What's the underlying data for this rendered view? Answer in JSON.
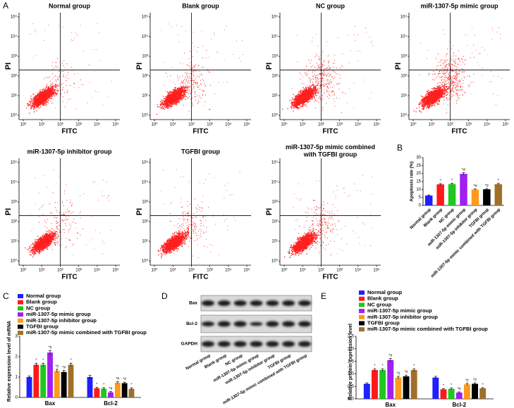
{
  "panel_labels": [
    "A",
    "B",
    "C",
    "D",
    "E"
  ],
  "blot": {
    "rows": [
      "Bax",
      "Bcl-2",
      "GAPDH"
    ],
    "lanes": [
      "Normal group",
      "Blank group",
      "NC group",
      "miR-1307-5p mimic group",
      "miR-1307-5p inhibitor group",
      "TGFBI group",
      "miR-1307-5p mimic combined with TGFBI group"
    ]
  },
  "chart_data": [
    {
      "type": "flow",
      "title": "Normal group",
      "xlabel": "FITC",
      "ylabel": "PI",
      "log_scale": true,
      "xlim": [
        1,
        100000
      ],
      "ylim": [
        1,
        100000
      ],
      "gate": [
        100,
        200
      ],
      "color": "#ff1f1f",
      "xticks": [
        {
          "value": 1,
          "label": "10⁰"
        },
        {
          "value": 10,
          "label": "10¹"
        },
        {
          "value": 100,
          "label": "10²"
        },
        {
          "value": 1000,
          "label": "10³"
        },
        {
          "value": 10000,
          "label": "10⁴"
        },
        {
          "value": 100000,
          "label": "10⁵"
        }
      ],
      "yticks": [
        {
          "value": 1,
          "label": "10⁰"
        },
        {
          "value": 10,
          "label": "10¹"
        },
        {
          "value": 100,
          "label": "10²"
        },
        {
          "value": 1000,
          "label": "10³"
        },
        {
          "value": 10000,
          "label": "10⁴"
        },
        {
          "value": 100000,
          "label": "10⁵"
        }
      ]
    },
    {
      "type": "flow",
      "title": "Blank group",
      "xlabel": "FITC",
      "ylabel": "PI",
      "log_scale": true,
      "xlim": [
        1,
        100000
      ],
      "ylim": [
        1,
        100000
      ],
      "gate": [
        100,
        200
      ],
      "color": "#ff1f1f",
      "xticks": [
        {
          "value": 1,
          "label": "10⁰"
        },
        {
          "value": 10,
          "label": "10¹"
        },
        {
          "value": 100,
          "label": "10²"
        },
        {
          "value": 1000,
          "label": "10³"
        },
        {
          "value": 10000,
          "label": "10⁴"
        },
        {
          "value": 100000,
          "label": "10⁵"
        }
      ],
      "yticks": [
        {
          "value": 1,
          "label": "10⁰"
        },
        {
          "value": 10,
          "label": "10¹"
        },
        {
          "value": 100,
          "label": "10²"
        },
        {
          "value": 1000,
          "label": "10³"
        },
        {
          "value": 10000,
          "label": "10⁴"
        },
        {
          "value": 100000,
          "label": "10⁵"
        }
      ]
    },
    {
      "type": "flow",
      "title": "NC group",
      "xlabel": "FITC",
      "ylabel": "PI",
      "log_scale": true,
      "xlim": [
        1,
        100000
      ],
      "ylim": [
        1,
        100000
      ],
      "gate": [
        100,
        200
      ],
      "color": "#ff1f1f",
      "xticks": [
        {
          "value": 1,
          "label": "10⁰"
        },
        {
          "value": 10,
          "label": "10¹"
        },
        {
          "value": 100,
          "label": "10²"
        },
        {
          "value": 1000,
          "label": "10³"
        },
        {
          "value": 10000,
          "label": "10⁴"
        },
        {
          "value": 100000,
          "label": "10⁵"
        }
      ],
      "yticks": [
        {
          "value": 1,
          "label": "10⁰"
        },
        {
          "value": 10,
          "label": "10¹"
        },
        {
          "value": 100,
          "label": "10²"
        },
        {
          "value": 1000,
          "label": "10³"
        },
        {
          "value": 10000,
          "label": "10⁴"
        },
        {
          "value": 100000,
          "label": "10⁵"
        }
      ]
    },
    {
      "type": "flow",
      "title": "miR-1307-5p mimic group",
      "xlabel": "FITC",
      "ylabel": "PI",
      "log_scale": true,
      "xlim": [
        1,
        100000
      ],
      "ylim": [
        1,
        100000
      ],
      "gate": [
        100,
        200
      ],
      "color": "#ff1f1f",
      "xticks": [
        {
          "value": 1,
          "label": "10⁰"
        },
        {
          "value": 10,
          "label": "10¹"
        },
        {
          "value": 100,
          "label": "10²"
        },
        {
          "value": 1000,
          "label": "10³"
        },
        {
          "value": 10000,
          "label": "10⁴"
        },
        {
          "value": 100000,
          "label": "10⁵"
        }
      ],
      "yticks": [
        {
          "value": 1,
          "label": "10⁰"
        },
        {
          "value": 10,
          "label": "10¹"
        },
        {
          "value": 100,
          "label": "10²"
        },
        {
          "value": 1000,
          "label": "10³"
        },
        {
          "value": 10000,
          "label": "10⁴"
        },
        {
          "value": 100000,
          "label": "10⁵"
        }
      ]
    },
    {
      "type": "flow",
      "title": "miR-1307-5p inhibitor group",
      "xlabel": "FITC",
      "ylabel": "PI",
      "log_scale": true,
      "xlim": [
        1,
        100000
      ],
      "ylim": [
        1,
        100000
      ],
      "gate": [
        100,
        200
      ],
      "color": "#ff1f1f",
      "xticks": [
        {
          "value": 1,
          "label": "10⁰"
        },
        {
          "value": 10,
          "label": "10¹"
        },
        {
          "value": 100,
          "label": "10²"
        },
        {
          "value": 1000,
          "label": "10³"
        },
        {
          "value": 10000,
          "label": "10⁴"
        },
        {
          "value": 100000,
          "label": "10⁵"
        }
      ],
      "yticks": [
        {
          "value": 1,
          "label": "10⁰"
        },
        {
          "value": 10,
          "label": "10¹"
        },
        {
          "value": 100,
          "label": "10²"
        },
        {
          "value": 1000,
          "label": "10³"
        },
        {
          "value": 10000,
          "label": "10⁴"
        },
        {
          "value": 100000,
          "label": "10⁵"
        }
      ]
    },
    {
      "type": "flow",
      "title": "TGFBI group",
      "xlabel": "FITC",
      "ylabel": "PI",
      "log_scale": true,
      "xlim": [
        1,
        100000
      ],
      "ylim": [
        1,
        100000
      ],
      "gate": [
        100,
        200
      ],
      "color": "#ff1f1f",
      "xticks": [
        {
          "value": 1,
          "label": "10⁰"
        },
        {
          "value": 10,
          "label": "10¹"
        },
        {
          "value": 100,
          "label": "10²"
        },
        {
          "value": 1000,
          "label": "10³"
        },
        {
          "value": 10000,
          "label": "10⁴"
        },
        {
          "value": 100000,
          "label": "10⁵"
        }
      ],
      "yticks": [
        {
          "value": 1,
          "label": "10⁰"
        },
        {
          "value": 10,
          "label": "10¹"
        },
        {
          "value": 100,
          "label": "10²"
        },
        {
          "value": 1000,
          "label": "10³"
        },
        {
          "value": 10000,
          "label": "10⁴"
        },
        {
          "value": 100000,
          "label": "10⁵"
        }
      ]
    },
    {
      "type": "flow",
      "title": "miR-1307-5p mimic combined\nwith TGFBI group",
      "xlabel": "FITC",
      "ylabel": "PI",
      "log_scale": true,
      "xlim": [
        1,
        100000
      ],
      "ylim": [
        1,
        100000
      ],
      "gate": [
        100,
        200
      ],
      "color": "#ff1f1f",
      "xticks": [
        {
          "value": 1,
          "label": "10⁰"
        },
        {
          "value": 10,
          "label": "10¹"
        },
        {
          "value": 100,
          "label": "10²"
        },
        {
          "value": 1000,
          "label": "10³"
        },
        {
          "value": 10000,
          "label": "10⁴"
        },
        {
          "value": 100000,
          "label": "10⁵"
        }
      ],
      "yticks": [
        {
          "value": 1,
          "label": "10⁰"
        },
        {
          "value": 10,
          "label": "10¹"
        },
        {
          "value": 100,
          "label": "10²"
        },
        {
          "value": 1000,
          "label": "10³"
        },
        {
          "value": 10000,
          "label": "10⁴"
        },
        {
          "value": 100000,
          "label": "10⁵"
        }
      ]
    },
    {
      "type": "bar",
      "ylabel": "Apoptosis rate (%)",
      "categories": [
        "Normal group",
        "Blank group",
        "NC group",
        "miR-1307-5p mimic group",
        "miR-1307-5p inhibitor group",
        "TGFBI group",
        "miR-1307-5p mimic combined with TGFBI group"
      ],
      "values": [
        6.2,
        13.2,
        13.4,
        19.8,
        9.9,
        10.1,
        13.3
      ],
      "errors": [
        0.4,
        0.5,
        0.5,
        0.7,
        0.4,
        0.5,
        0.5
      ],
      "markers": [
        null,
        "*",
        "*",
        "*#",
        "*#",
        "*#",
        "*"
      ],
      "colors": [
        "#1f1fff",
        "#ff1a1a",
        "#1ec81e",
        "#a020f0",
        "#ff9a1a",
        "#000000",
        "#a0702a"
      ],
      "ylim": [
        0,
        30
      ],
      "yticks": [
        0,
        5,
        10,
        15,
        20,
        25,
        30
      ]
    },
    {
      "type": "grouped_bar",
      "ylabel": "Relative expression level of mRNA",
      "categories": [
        "Bax",
        "Bcl-2"
      ],
      "ylim": [
        0,
        3
      ],
      "yticks": [
        0,
        1,
        2,
        3
      ],
      "series": [
        {
          "name": "Normal group",
          "color": "#1f1fff",
          "values": [
            1.0,
            1.0
          ],
          "errors": [
            0.05,
            0.08
          ],
          "markers": [
            null,
            null
          ]
        },
        {
          "name": "Blank group",
          "color": "#ff1a1a",
          "values": [
            1.6,
            0.45
          ],
          "errors": [
            0.08,
            0.05
          ],
          "markers": [
            "*",
            "*"
          ]
        },
        {
          "name": "NC group",
          "color": "#1ec81e",
          "values": [
            1.6,
            0.43
          ],
          "errors": [
            0.08,
            0.05
          ],
          "markers": [
            "*",
            "*"
          ]
        },
        {
          "name": "miR-1307-5p mimic group",
          "color": "#a020f0",
          "values": [
            2.2,
            0.25
          ],
          "errors": [
            0.1,
            0.04
          ],
          "markers": [
            "*#",
            "*#"
          ]
        },
        {
          "name": "miR-1307-5p inhibitor group",
          "color": "#ff9a1a",
          "values": [
            1.3,
            0.72
          ],
          "errors": [
            0.08,
            0.05
          ],
          "markers": [
            "*#",
            "*#"
          ]
        },
        {
          "name": "TGFBI group",
          "color": "#000000",
          "values": [
            1.25,
            0.7
          ],
          "errors": [
            0.08,
            0.05
          ],
          "markers": [
            "*#",
            "*#"
          ]
        },
        {
          "name": "miR-1307-5p mimic combined with TGFBI group",
          "color": "#a0702a",
          "values": [
            1.6,
            0.42
          ],
          "errors": [
            0.08,
            0.05
          ],
          "markers": [
            "*",
            "*"
          ]
        }
      ]
    },
    {
      "type": "grouped_bar",
      "ylabel": "Relative protein expression level",
      "categories": [
        "Bax",
        "Bcl-2"
      ],
      "ylim": [
        0,
        2.5
      ],
      "yticks": [
        {
          "value": 0,
          "label": "0.0"
        },
        0.5,
        {
          "value": 1,
          "label": "1.0"
        },
        1.5,
        {
          "value": 2,
          "label": "2.0"
        },
        2.5
      ],
      "series": [
        {
          "name": "Normal group",
          "color": "#1f1fff",
          "values": [
            0.6,
            0.85
          ],
          "errors": [
            0.04,
            0.05
          ],
          "markers": [
            null,
            null
          ]
        },
        {
          "name": "Blank group",
          "color": "#ff1a1a",
          "values": [
            1.15,
            0.38
          ],
          "errors": [
            0.05,
            0.03
          ],
          "markers": [
            "*",
            "*"
          ]
        },
        {
          "name": "NC group",
          "color": "#1ec81e",
          "values": [
            1.15,
            0.4
          ],
          "errors": [
            0.05,
            0.03
          ],
          "markers": [
            "*",
            "*"
          ]
        },
        {
          "name": "miR-1307-5p mimic group",
          "color": "#a020f0",
          "values": [
            1.55,
            0.25
          ],
          "errors": [
            0.06,
            0.03
          ],
          "markers": [
            "*#",
            "*#"
          ]
        },
        {
          "name": "miR-1307-5p inhibitor group",
          "color": "#ff9a1a",
          "values": [
            0.85,
            0.58
          ],
          "errors": [
            0.05,
            0.04
          ],
          "markers": [
            "*#",
            "*#"
          ]
        },
        {
          "name": "TGFBI group",
          "color": "#000000",
          "values": [
            0.9,
            0.6
          ],
          "errors": [
            0.05,
            0.04
          ],
          "markers": [
            "*#",
            "*#"
          ]
        },
        {
          "name": "miR-1307-5p mimic combined with TGFBI group",
          "color": "#a0702a",
          "values": [
            1.15,
            0.42
          ],
          "errors": [
            0.05,
            0.03
          ],
          "markers": [
            "*",
            "*"
          ]
        }
      ]
    }
  ]
}
